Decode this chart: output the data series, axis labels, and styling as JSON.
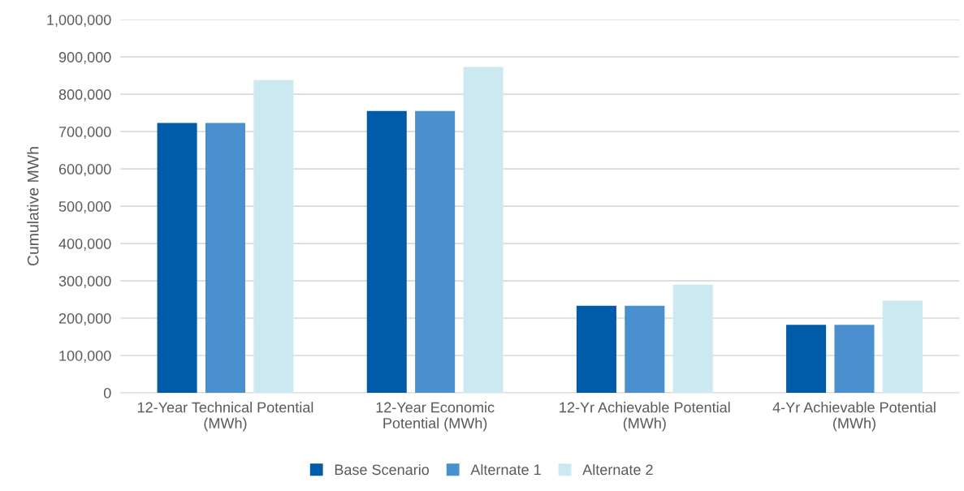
{
  "chart_data": {
    "type": "bar",
    "ylabel": "Cumulative MWh",
    "categories": [
      "12-Year Technical Potential (MWh)",
      "12-Year Economic Potential (MWh)",
      "12-Yr Achievable Potential (MWh)",
      "4-Yr Achievable Potential (MWh)"
    ],
    "series": [
      {
        "name": "Base Scenario",
        "color": "#005ca9",
        "values": [
          723000,
          755000,
          233000,
          182000
        ]
      },
      {
        "name": "Alternate 1",
        "color": "#4a90cf",
        "values": [
          723000,
          755000,
          233000,
          182000
        ]
      },
      {
        "name": "Alternate 2",
        "color": "#cce9f1",
        "values": [
          838000,
          873000,
          290000,
          247000
        ]
      }
    ],
    "ylim": [
      0,
      1000000
    ],
    "yticks": [
      {
        "value": 0,
        "label": "0"
      },
      {
        "value": 100000,
        "label": "100,000"
      },
      {
        "value": 200000,
        "label": "200,000"
      },
      {
        "value": 300000,
        "label": "300,000"
      },
      {
        "value": 400000,
        "label": "400,000"
      },
      {
        "value": 500000,
        "label": "500,000"
      },
      {
        "value": 600000,
        "label": "600,000"
      },
      {
        "value": 700000,
        "label": "700,000"
      },
      {
        "value": 800000,
        "label": "800,000"
      },
      {
        "value": 900000,
        "label": "900,000"
      },
      {
        "value": 1000000,
        "label": "1,000,000"
      }
    ],
    "grid": "y",
    "legend": "bottom"
  }
}
